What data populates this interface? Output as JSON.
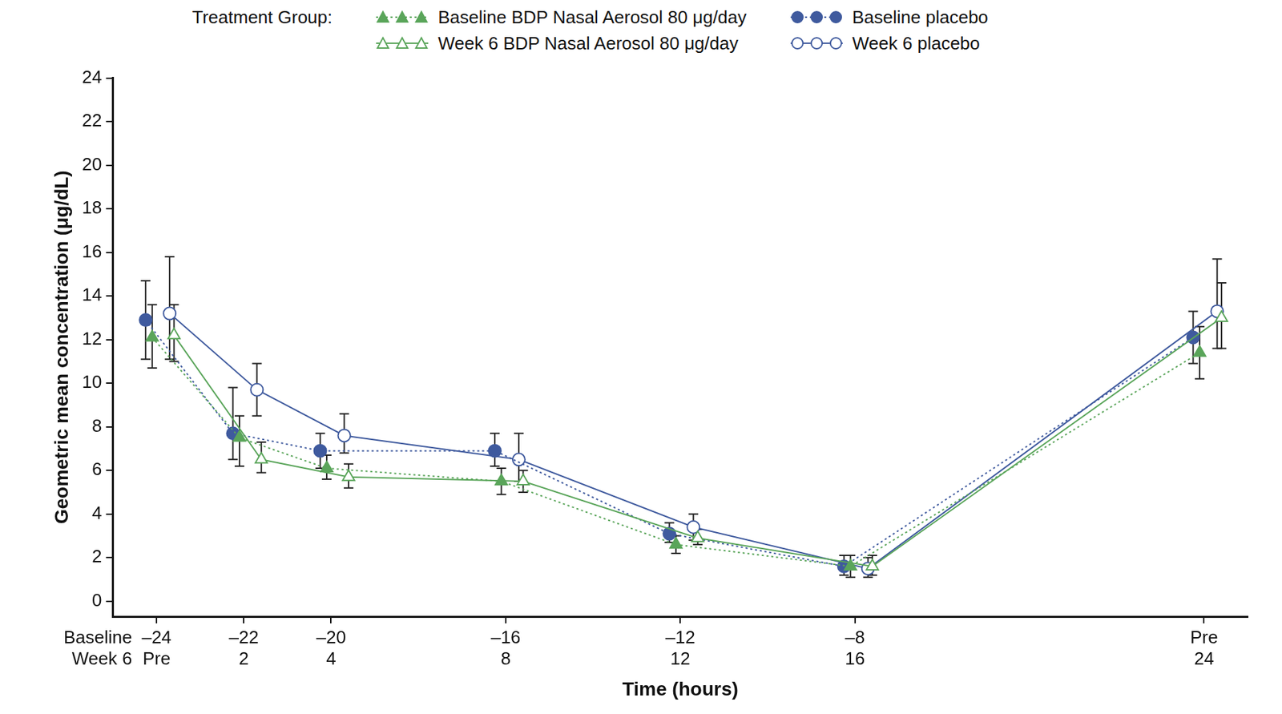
{
  "chart_data": {
    "type": "line",
    "legend_title": "Treatment Group:",
    "legend": "top",
    "xlabel": "Time (hours)",
    "ylabel": "Geometric mean concentration (μg/dL)",
    "grid": false,
    "xlim": [
      -1,
      25
    ],
    "xtick_rows": [
      "Baseline",
      "Week 6"
    ],
    "xticks": [
      {
        "value": 0,
        "label": [
          "–24",
          "Pre"
        ]
      },
      {
        "value": 2,
        "label": [
          "–22",
          "2"
        ]
      },
      {
        "value": 4,
        "label": [
          "–20",
          "4"
        ]
      },
      {
        "value": 8,
        "label": [
          "–16",
          "8"
        ]
      },
      {
        "value": 12,
        "label": [
          "–12",
          "12"
        ]
      },
      {
        "value": 16,
        "label": [
          "–8",
          "16"
        ]
      },
      {
        "value": 24,
        "label": [
          "Pre",
          "24"
        ]
      }
    ],
    "ylim": [
      -0.7,
      24
    ],
    "yticks": [
      0,
      2,
      4,
      6,
      8,
      10,
      12,
      14,
      16,
      18,
      20,
      22,
      24
    ],
    "series": [
      {
        "name": "Baseline BDP Nasal Aerosol 80 μg/day",
        "color": "#5aa55a",
        "marker": "triangle",
        "line_style": "dotted",
        "x": [
          -0.1,
          1.9,
          3.9,
          7.9,
          11.9,
          15.9,
          23.9
        ],
        "values": [
          12.1,
          7.5,
          6.1,
          5.5,
          2.6,
          1.6,
          11.4
        ],
        "error_low": [
          10.7,
          6.2,
          5.6,
          4.9,
          2.2,
          1.1,
          10.2
        ],
        "error_high": [
          13.6,
          8.5,
          6.7,
          6.1,
          3.0,
          2.1,
          12.6
        ]
      },
      {
        "name": "Week 6 BDP Nasal Aerosol 80 μg/day",
        "color": "#5aa55a",
        "marker": "open triangle",
        "line_style": "solid",
        "x": [
          0.4,
          2.4,
          4.4,
          8.4,
          12.4,
          16.4,
          24.4
        ],
        "values": [
          12.2,
          6.5,
          5.7,
          5.5,
          2.9,
          1.6,
          13.0
        ],
        "error_low": [
          11.0,
          5.9,
          5.2,
          5.0,
          2.6,
          1.2,
          11.6
        ],
        "error_high": [
          13.6,
          7.3,
          6.3,
          6.0,
          3.3,
          2.1,
          14.6
        ]
      },
      {
        "name": "Baseline placebo",
        "color": "#3f5a9e",
        "marker": "circle",
        "line_style": "dotted",
        "x": [
          -0.25,
          1.75,
          3.75,
          7.75,
          11.75,
          15.75,
          23.75
        ],
        "values": [
          12.9,
          7.7,
          6.9,
          6.9,
          3.1,
          1.6,
          12.1
        ],
        "error_low": [
          11.1,
          6.5,
          6.1,
          6.2,
          2.7,
          1.2,
          10.9
        ],
        "error_high": [
          14.7,
          9.8,
          7.7,
          7.7,
          3.6,
          2.1,
          13.3
        ]
      },
      {
        "name": "Week 6 placebo",
        "color": "#3f5a9e",
        "marker": "open circle",
        "line_style": "solid",
        "x": [
          0.3,
          2.3,
          4.3,
          8.3,
          12.3,
          16.3,
          24.3
        ],
        "values": [
          13.2,
          9.7,
          7.6,
          6.5,
          3.4,
          1.5,
          13.3
        ],
        "error_low": [
          11.1,
          8.5,
          6.8,
          5.5,
          2.8,
          1.1,
          11.6
        ],
        "error_high": [
          15.8,
          10.9,
          8.6,
          7.7,
          4.0,
          2.0,
          15.7
        ]
      }
    ]
  }
}
